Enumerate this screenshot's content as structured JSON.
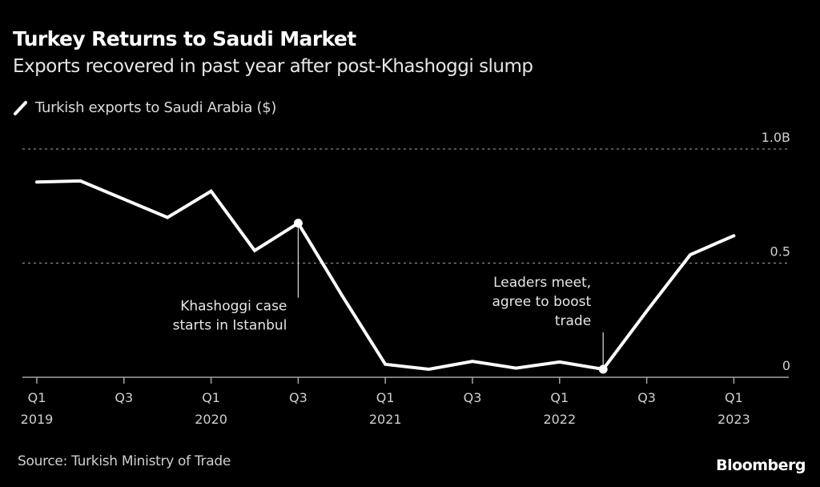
{
  "header": {
    "title": "Turkey Returns to Saudi Market",
    "subtitle": "Exports recovered in past year after post-Khashoggi slump"
  },
  "legend": {
    "icon": "line-swatch-icon",
    "label": "Turkish exports to Saudi Arabia ($)"
  },
  "footer": {
    "source": "Source: Turkish Ministry of Trade",
    "brand": "Bloomberg"
  },
  "colors": {
    "background": "#000000",
    "line": "#ffffff",
    "grid": "#8a8a8a",
    "axis": "#a6a6a6",
    "text_muted": "#cfcfcf"
  },
  "chart_data": {
    "type": "line",
    "title": "Turkey Returns to Saudi Market",
    "subtitle": "Exports recovered in past year after post-Khashoggi slump",
    "xlabel": "",
    "ylabel": "",
    "x": [
      "Q1 2019",
      "Q2 2019",
      "Q3 2019",
      "Q4 2019",
      "Q1 2020",
      "Q2 2020",
      "Q3 2020",
      "Q4 2020",
      "Q1 2021",
      "Q2 2021",
      "Q3 2021",
      "Q4 2021",
      "Q1 2022",
      "Q2 2022",
      "Q3 2022",
      "Q4 2022",
      "Q1 2023"
    ],
    "series": [
      {
        "name": "Turkish exports to Saudi Arabia ($)",
        "unit": "billion USD",
        "values": [
          0.855,
          0.86,
          0.78,
          0.7,
          0.815,
          0.555,
          0.675,
          0.36,
          0.057,
          0.035,
          0.07,
          0.04,
          0.067,
          0.035,
          0.29,
          0.537,
          0.62
        ]
      }
    ],
    "ylim": [
      0,
      1.0
    ],
    "y_ticks": [
      {
        "value": 0,
        "label": "0"
      },
      {
        "value": 0.5,
        "label": "0.5"
      },
      {
        "value": 1.0,
        "label": "1.0B"
      }
    ],
    "x_ticks": [
      {
        "index": 0,
        "line1": "Q1",
        "line2": "2019"
      },
      {
        "index": 2,
        "line1": "Q3",
        "line2": ""
      },
      {
        "index": 4,
        "line1": "Q1",
        "line2": "2020"
      },
      {
        "index": 6,
        "line1": "Q3",
        "line2": ""
      },
      {
        "index": 8,
        "line1": "Q1",
        "line2": "2021"
      },
      {
        "index": 10,
        "line1": "Q3",
        "line2": ""
      },
      {
        "index": 12,
        "line1": "Q1",
        "line2": "2022"
      },
      {
        "index": 14,
        "line1": "Q3",
        "line2": ""
      },
      {
        "index": 16,
        "line1": "Q1",
        "line2": "2023"
      }
    ],
    "grid": true,
    "grid_style": "dotted horizontal",
    "y_axis_side": "right",
    "legend_position": "top-left",
    "annotations": [
      {
        "index": 6,
        "lines": [
          "Khashoggi case",
          "starts in Istanbul"
        ],
        "placement": "below-left"
      },
      {
        "index": 13,
        "lines": [
          "Leaders meet,",
          "agree to boost",
          "trade"
        ],
        "placement": "above-left"
      }
    ]
  }
}
